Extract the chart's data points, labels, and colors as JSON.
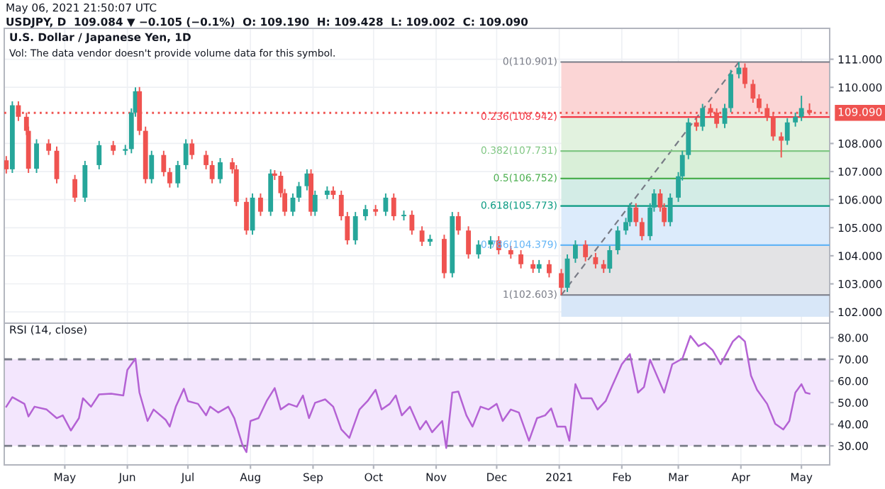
{
  "chart_data": [
    {
      "type": "candlestick",
      "title": "U.S. Dollar / Japanese Yen, 1D",
      "subtitle": "Vol: The data vendor doesn't provide volume data for this symbol.",
      "annotations": [
        "May 06, 2021 21:50:07 UTC",
        "USDJPY, D  109.084 ▼ −0.105 (−0.1%)  O: 109.190  H: 109.428  L: 109.002  C: 109.090"
      ],
      "x": [
        "2020-04-02",
        "2020-04-05",
        "2020-04-08",
        "2020-04-12",
        "2020-04-13",
        "2020-04-17",
        "2020-04-23",
        "2020-04-27",
        "2020-05-06",
        "2020-05-11",
        "2020-05-18",
        "2020-05-25",
        "2020-05-31",
        "2020-06-03",
        "2020-06-05",
        "2020-06-07",
        "2020-06-10",
        "2020-06-13",
        "2020-06-19",
        "2020-06-22",
        "2020-06-26",
        "2020-06-30",
        "2020-07-03",
        "2020-07-10",
        "2020-07-13",
        "2020-07-17",
        "2020-07-23",
        "2020-07-25",
        "2020-07-30",
        "2020-08-02",
        "2020-08-06",
        "2020-08-11",
        "2020-08-13",
        "2020-08-16",
        "2020-08-18",
        "2020-08-22",
        "2020-08-25",
        "2020-08-29",
        "2020-08-31",
        "2020-09-02",
        "2020-09-08",
        "2020-09-11",
        "2020-09-15",
        "2020-09-18",
        "2020-09-22",
        "2020-09-27",
        "2020-10-02",
        "2020-10-07",
        "2020-10-11",
        "2020-10-16",
        "2020-10-20",
        "2020-10-25",
        "2020-10-29",
        "2020-11-05",
        "2020-11-09",
        "2020-11-12",
        "2020-11-17",
        "2020-11-22",
        "2020-11-28",
        "2020-12-02",
        "2020-12-08",
        "2020-12-13",
        "2020-12-19",
        "2020-12-22",
        "2020-12-27",
        "2021-01-02",
        "2021-01-05",
        "2021-01-09",
        "2021-01-14",
        "2021-01-19",
        "2021-01-23",
        "2021-01-26",
        "2021-01-30",
        "2021-02-03",
        "2021-02-05",
        "2021-02-08",
        "2021-02-11",
        "2021-02-15",
        "2021-02-17",
        "2021-02-20",
        "2021-02-22",
        "2021-02-25",
        "2021-03-01",
        "2021-03-03",
        "2021-03-06",
        "2021-03-10",
        "2021-03-13",
        "2021-03-17",
        "2021-03-20",
        "2021-03-24",
        "2021-03-27",
        "2021-03-31",
        "2021-04-03",
        "2021-04-07",
        "2021-04-10",
        "2021-04-14",
        "2021-04-17",
        "2021-04-21",
        "2021-04-24",
        "2021-04-28",
        "2021-05-01",
        "2021-05-05"
      ],
      "ohlc": [
        [
          107.4,
          107.55,
          106.93,
          107.08
        ],
        [
          107.08,
          109.5,
          106.95,
          109.36
        ],
        [
          109.36,
          109.5,
          108.8,
          108.95
        ],
        [
          108.95,
          109.1,
          108.3,
          108.45
        ],
        [
          108.45,
          108.6,
          106.95,
          107.1
        ],
        [
          107.1,
          108.15,
          106.95,
          108.0
        ],
        [
          108.0,
          108.15,
          107.59,
          107.74
        ],
        [
          107.74,
          107.89,
          106.58,
          106.73
        ],
        [
          106.73,
          106.88,
          105.92,
          106.07
        ],
        [
          106.07,
          107.38,
          105.92,
          107.23
        ],
        [
          107.23,
          108.09,
          107.08,
          107.94
        ],
        [
          107.94,
          108.09,
          107.59,
          107.74
        ],
        [
          107.74,
          107.95,
          107.59,
          107.8
        ],
        [
          107.8,
          109.25,
          107.65,
          109.1
        ],
        [
          109.1,
          110.0,
          108.95,
          109.86
        ],
        [
          109.86,
          110.01,
          108.3,
          108.45
        ],
        [
          108.45,
          108.6,
          106.58,
          106.73
        ],
        [
          106.73,
          107.74,
          106.58,
          107.59
        ],
        [
          107.59,
          107.74,
          106.83,
          106.98
        ],
        [
          106.98,
          107.13,
          106.43,
          106.58
        ],
        [
          106.58,
          107.38,
          106.43,
          107.23
        ],
        [
          107.23,
          108.15,
          107.08,
          108.0
        ],
        [
          108.0,
          108.15,
          107.44,
          107.59
        ],
        [
          107.59,
          107.74,
          107.08,
          107.23
        ],
        [
          107.23,
          107.38,
          106.58,
          106.73
        ],
        [
          106.73,
          107.48,
          106.58,
          107.33
        ],
        [
          107.33,
          107.48,
          106.93,
          107.08
        ],
        [
          107.08,
          107.23,
          105.77,
          105.92
        ],
        [
          105.92,
          106.07,
          104.75,
          104.9
        ],
        [
          104.9,
          106.22,
          104.75,
          106.07
        ],
        [
          106.07,
          106.22,
          105.42,
          105.57
        ],
        [
          105.57,
          107.08,
          105.42,
          106.93
        ],
        [
          106.93,
          107.05,
          106.7,
          106.85
        ],
        [
          106.85,
          107.0,
          106.08,
          106.23
        ],
        [
          106.23,
          106.38,
          105.42,
          105.57
        ],
        [
          105.57,
          106.22,
          105.42,
          106.07
        ],
        [
          106.07,
          106.63,
          105.92,
          106.48
        ],
        [
          106.48,
          107.08,
          106.33,
          106.93
        ],
        [
          106.93,
          107.08,
          105.42,
          105.57
        ],
        [
          105.57,
          106.32,
          105.42,
          106.17
        ],
        [
          106.17,
          106.47,
          106.02,
          106.32
        ],
        [
          106.32,
          106.47,
          106.02,
          106.17
        ],
        [
          106.17,
          106.32,
          105.26,
          105.41
        ],
        [
          105.41,
          105.56,
          104.4,
          104.55
        ],
        [
          104.55,
          105.56,
          104.4,
          105.41
        ],
        [
          105.41,
          105.81,
          105.26,
          105.66
        ],
        [
          105.66,
          105.81,
          105.42,
          105.57
        ],
        [
          105.57,
          106.22,
          105.42,
          106.07
        ],
        [
          106.07,
          106.22,
          105.26,
          105.41
        ],
        [
          105.41,
          105.61,
          105.26,
          105.46
        ],
        [
          105.46,
          105.61,
          104.75,
          104.9
        ],
        [
          104.9,
          105.05,
          104.35,
          104.5
        ],
        [
          104.5,
          104.75,
          104.35,
          104.6
        ],
        [
          104.6,
          104.75,
          103.2,
          103.38
        ],
        [
          103.38,
          105.56,
          103.23,
          105.41
        ],
        [
          105.41,
          105.56,
          104.75,
          104.9
        ],
        [
          104.9,
          105.05,
          103.9,
          104.05
        ],
        [
          104.05,
          104.55,
          103.9,
          104.4
        ],
        [
          104.4,
          104.7,
          104.25,
          104.55
        ],
        [
          104.55,
          104.7,
          104.05,
          104.2
        ],
        [
          104.2,
          104.35,
          103.9,
          104.05
        ],
        [
          104.05,
          104.2,
          103.55,
          103.7
        ],
        [
          103.7,
          103.85,
          103.39,
          103.54
        ],
        [
          103.54,
          103.85,
          103.39,
          103.7
        ],
        [
          103.7,
          103.85,
          103.23,
          103.38
        ],
        [
          103.38,
          103.53,
          102.603,
          102.86
        ],
        [
          102.86,
          104.05,
          102.71,
          103.9
        ],
        [
          103.9,
          104.55,
          103.75,
          104.4
        ],
        [
          104.4,
          104.55,
          103.8,
          103.95
        ],
        [
          103.95,
          104.1,
          103.55,
          103.7
        ],
        [
          103.7,
          103.85,
          103.39,
          103.54
        ],
        [
          103.54,
          104.35,
          103.39,
          104.2
        ],
        [
          104.2,
          105.05,
          104.05,
          104.9
        ],
        [
          104.9,
          105.35,
          104.75,
          105.2
        ],
        [
          105.2,
          105.87,
          105.05,
          105.72
        ],
        [
          105.72,
          105.87,
          105.05,
          105.2
        ],
        [
          105.2,
          105.35,
          104.55,
          104.7
        ],
        [
          104.7,
          105.87,
          104.55,
          105.72
        ],
        [
          105.72,
          106.37,
          105.57,
          106.22
        ],
        [
          106.22,
          106.37,
          105.57,
          105.72
        ],
        [
          105.72,
          105.87,
          105.05,
          105.2
        ],
        [
          105.2,
          106.22,
          105.05,
          106.07
        ],
        [
          106.07,
          106.98,
          105.92,
          106.83
        ],
        [
          106.83,
          107.74,
          106.68,
          107.59
        ],
        [
          107.59,
          108.9,
          107.44,
          108.75
        ],
        [
          108.75,
          108.9,
          108.45,
          108.6
        ],
        [
          108.6,
          109.41,
          108.45,
          109.26
        ],
        [
          109.26,
          109.41,
          108.95,
          109.1
        ],
        [
          109.1,
          109.25,
          108.55,
          108.7
        ],
        [
          108.7,
          109.41,
          108.55,
          109.26
        ],
        [
          109.26,
          110.62,
          109.11,
          110.47
        ],
        [
          110.47,
          110.901,
          110.32,
          110.7
        ],
        [
          110.7,
          110.85,
          109.97,
          110.12
        ],
        [
          110.12,
          110.27,
          109.45,
          109.6
        ],
        [
          109.6,
          109.75,
          109.11,
          109.26
        ],
        [
          109.26,
          109.41,
          108.8,
          108.95
        ],
        [
          108.95,
          109.1,
          108.1,
          108.25
        ],
        [
          108.25,
          108.4,
          107.5,
          108.1
        ],
        [
          108.1,
          108.9,
          107.95,
          108.75
        ],
        [
          108.75,
          109.1,
          108.6,
          108.95
        ],
        [
          108.95,
          109.7,
          108.8,
          109.26
        ],
        [
          109.19,
          109.428,
          109.002,
          109.09
        ]
      ],
      "colors": [
        "#ef5350",
        "#26a69a",
        "#ef5350",
        "#ef5350",
        "#ef5350",
        "#26a69a",
        "#ef5350",
        "#ef5350",
        "#ef5350",
        "#26a69a",
        "#26a69a",
        "#ef5350",
        "#26a69a",
        "#26a69a",
        "#26a69a",
        "#ef5350",
        "#ef5350",
        "#26a69a",
        "#ef5350",
        "#ef5350",
        "#26a69a",
        "#26a69a",
        "#ef5350",
        "#ef5350",
        "#ef5350",
        "#26a69a",
        "#ef5350",
        "#ef5350",
        "#ef5350",
        "#26a69a",
        "#ef5350",
        "#26a69a",
        "#ef5350",
        "#ef5350",
        "#ef5350",
        "#26a69a",
        "#26a69a",
        "#26a69a",
        "#ef5350",
        "#26a69a",
        "#26a69a",
        "#ef5350",
        "#ef5350",
        "#ef5350",
        "#26a69a",
        "#26a69a",
        "#ef5350",
        "#26a69a",
        "#ef5350",
        "#26a69a",
        "#ef5350",
        "#ef5350",
        "#26a69a",
        "#ef5350",
        "#26a69a",
        "#ef5350",
        "#ef5350",
        "#26a69a",
        "#26a69a",
        "#ef5350",
        "#ef5350",
        "#ef5350",
        "#ef5350",
        "#26a69a",
        "#ef5350",
        "#ef5350",
        "#26a69a",
        "#26a69a",
        "#ef5350",
        "#ef5350",
        "#ef5350",
        "#26a69a",
        "#26a69a",
        "#26a69a",
        "#26a69a",
        "#ef5350",
        "#ef5350",
        "#26a69a",
        "#26a69a",
        "#ef5350",
        "#ef5350",
        "#26a69a",
        "#26a69a",
        "#26a69a",
        "#26a69a",
        "#ef5350",
        "#26a69a",
        "#ef5350",
        "#ef5350",
        "#26a69a",
        "#26a69a",
        "#26a69a",
        "#ef5350",
        "#ef5350",
        "#ef5350",
        "#ef5350",
        "#ef5350",
        "#ef5350",
        "#26a69a",
        "#26a69a",
        "#26a69a",
        "#ef5350"
      ],
      "series": [
        {
          "type": "line",
          "x": [
            "2021-01-02",
            "2021-03-31"
          ],
          "values": [
            102.6,
            110.9
          ],
          "color": "#787b86",
          "line_style": "dashed"
        }
      ],
      "xlim": [
        "2020-04-01",
        "2021-05-15"
      ],
      "xticks": [
        {
          "value": "2020-05-01",
          "label": null
        },
        {
          "value": "2020-06-01",
          "label": null
        },
        {
          "value": "2020-07-01",
          "label": null
        },
        {
          "value": "2020-08-01",
          "label": null
        },
        {
          "value": "2020-09-01",
          "label": null
        },
        {
          "value": "2020-10-01",
          "label": null
        },
        {
          "value": "2020-11-01",
          "label": null
        },
        {
          "value": "2020-12-01",
          "label": null
        },
        {
          "value": "2021-01-01",
          "label": null
        },
        {
          "value": "2021-02-01",
          "label": null
        },
        {
          "value": "2021-03-01",
          "label": null
        },
        {
          "value": "2021-04-01",
          "label": null
        },
        {
          "value": "2021-05-01",
          "label": null
        }
      ],
      "ylim": [
        101.6,
        112.1
      ],
      "yticks": [
        {
          "value": 102,
          "label": "102.000"
        },
        {
          "value": 103,
          "label": "103.000"
        },
        {
          "value": 104,
          "label": "104.000"
        },
        {
          "value": 105,
          "label": "105.000"
        },
        {
          "value": 106,
          "label": "106.000"
        },
        {
          "value": 107,
          "label": "107.000"
        },
        {
          "value": 108,
          "label": "108.000"
        },
        {
          "value": 110,
          "label": "110.000"
        },
        {
          "value": 111,
          "label": "111.000"
        }
      ],
      "tick_labels": "y",
      "grid": true,
      "ref_lines": [
        {
          "axis": "y",
          "value": 110.901,
          "label": "0(110.901)",
          "color": "#787b86",
          "line_style": "solid"
        },
        {
          "axis": "y",
          "value": 108.942,
          "label": "0.236(108.942)",
          "color": "#f23645",
          "line_style": "solid"
        },
        {
          "axis": "y",
          "value": 107.731,
          "label": "0.382(107.731)",
          "color": "#81c784",
          "line_style": "solid"
        },
        {
          "axis": "y",
          "value": 106.752,
          "label": "0.5(106.752)",
          "color": "#4caf50",
          "line_style": "solid"
        },
        {
          "axis": "y",
          "value": 105.773,
          "label": "0.618(105.773)",
          "color": "#089981",
          "line_style": "solid"
        },
        {
          "axis": "y",
          "value": 104.379,
          "label": "0.786(104.379)",
          "color": "#64b5f6",
          "line_style": "solid"
        },
        {
          "axis": "y",
          "value": 102.603,
          "label": "1(102.603)",
          "color": "#787b86",
          "line_style": "solid"
        },
        {
          "axis": "y",
          "value": 109.09,
          "label": "109.090",
          "color": "#ef5350",
          "line_style": "dotted"
        }
      ],
      "bands": [
        {
          "axis": "y",
          "from": 108.942,
          "to": 110.901,
          "color": "#fbd5d5"
        },
        {
          "axis": "y",
          "from": 107.731,
          "to": 108.942,
          "color": "#e2f2df"
        },
        {
          "axis": "y",
          "from": 106.752,
          "to": 107.731,
          "color": "#d9efd8"
        },
        {
          "axis": "y",
          "from": 105.773,
          "to": 106.752,
          "color": "#d3ece6"
        },
        {
          "axis": "y",
          "from": 104.379,
          "to": 105.773,
          "color": "#dcebfb"
        },
        {
          "axis": "y",
          "from": 102.603,
          "to": 104.379,
          "color": "#e3e3e5"
        },
        {
          "axis": "y",
          "from": 101.83,
          "to": 102.603,
          "color": "#d8e7f8"
        }
      ]
    },
    {
      "type": "line",
      "title": "RSI (14, close)",
      "color": "#b462d4",
      "x": [
        "2020-04-02",
        "2020-04-05",
        "2020-04-11",
        "2020-04-13",
        "2020-04-16",
        "2020-04-22",
        "2020-04-27",
        "2020-04-30",
        "2020-05-04",
        "2020-05-08",
        "2020-05-10",
        "2020-05-14",
        "2020-05-18",
        "2020-05-24",
        "2020-05-30",
        "2020-06-01",
        "2020-06-05",
        "2020-06-07",
        "2020-06-11",
        "2020-06-14",
        "2020-06-20",
        "2020-06-22",
        "2020-06-25",
        "2020-06-29",
        "2020-07-01",
        "2020-07-06",
        "2020-07-10",
        "2020-07-12",
        "2020-07-16",
        "2020-07-21",
        "2020-07-24",
        "2020-07-28",
        "2020-07-30",
        "2020-08-01",
        "2020-08-05",
        "2020-08-09",
        "2020-08-13",
        "2020-08-16",
        "2020-08-20",
        "2020-08-24",
        "2020-08-27",
        "2020-08-30",
        "2020-09-02",
        "2020-09-07",
        "2020-09-11",
        "2020-09-15",
        "2020-09-19",
        "2020-09-24",
        "2020-09-28",
        "2020-10-02",
        "2020-10-05",
        "2020-10-09",
        "2020-10-12",
        "2020-10-15",
        "2020-10-19",
        "2020-10-24",
        "2020-10-27",
        "2020-10-30",
        "2020-11-04",
        "2020-11-06",
        "2020-11-09",
        "2020-11-12",
        "2020-11-16",
        "2020-11-19",
        "2020-11-23",
        "2020-11-27",
        "2020-12-01",
        "2020-12-04",
        "2020-12-08",
        "2020-12-12",
        "2020-12-17",
        "2020-12-21",
        "2020-12-25",
        "2020-12-28",
        "2020-12-31",
        "2021-01-04",
        "2021-01-06",
        "2021-01-09",
        "2021-01-12",
        "2021-01-17",
        "2021-01-20",
        "2021-01-24",
        "2021-01-27",
        "2021-02-01",
        "2021-02-05",
        "2021-02-09",
        "2021-02-12",
        "2021-02-15",
        "2021-02-22",
        "2021-02-26",
        "2021-03-03",
        "2021-03-07",
        "2021-03-11",
        "2021-03-14",
        "2021-03-18",
        "2021-03-22",
        "2021-03-28",
        "2021-03-31",
        "2021-04-03",
        "2021-04-06",
        "2021-04-09",
        "2021-04-14",
        "2021-04-18",
        "2021-04-22",
        "2021-04-25",
        "2021-04-28",
        "2021-05-01",
        "2021-05-03",
        "2021-05-05"
      ],
      "values": [
        48.1,
        52.5,
        49.4,
        43.6,
        48.1,
        46.8,
        42.8,
        44.1,
        37.1,
        42.8,
        52.0,
        48.1,
        53.8,
        54.1,
        53.3,
        65.1,
        70.3,
        54.6,
        41.5,
        46.8,
        42.0,
        38.9,
        48.1,
        56.4,
        50.7,
        49.4,
        44.1,
        48.1,
        45.4,
        48.1,
        42.8,
        30.5,
        27.1,
        41.5,
        42.8,
        50.7,
        56.7,
        46.8,
        49.4,
        48.1,
        53.3,
        42.8,
        49.9,
        51.5,
        48.1,
        37.6,
        33.7,
        46.8,
        50.7,
        55.9,
        46.8,
        49.4,
        53.3,
        44.1,
        48.1,
        37.6,
        41.5,
        36.3,
        41.5,
        29.0,
        54.6,
        55.1,
        44.1,
        38.9,
        48.1,
        46.8,
        49.4,
        41.5,
        46.8,
        45.4,
        32.4,
        42.8,
        44.1,
        47.3,
        38.9,
        38.9,
        32.4,
        58.5,
        52.0,
        52.0,
        46.8,
        50.7,
        57.2,
        67.7,
        72.4,
        54.6,
        57.2,
        69.8,
        54.6,
        67.7,
        70.3,
        80.8,
        76.1,
        77.6,
        74.2,
        67.7,
        78.2,
        80.8,
        78.2,
        62.5,
        55.9,
        49.4,
        40.2,
        37.6,
        41.5,
        54.6,
        58.5,
        54.6,
        54.1
      ],
      "xlim": [
        "2020-04-01",
        "2021-05-15"
      ],
      "xticks": [
        {
          "value": "2020-05-01",
          "label": "May"
        },
        {
          "value": "2020-06-01",
          "label": "Jun"
        },
        {
          "value": "2020-07-01",
          "label": "Jul"
        },
        {
          "value": "2020-08-01",
          "label": "Aug"
        },
        {
          "value": "2020-09-01",
          "label": "Sep"
        },
        {
          "value": "2020-10-01",
          "label": "Oct"
        },
        {
          "value": "2020-11-01",
          "label": "Nov"
        },
        {
          "value": "2020-12-01",
          "label": "Dec"
        },
        {
          "value": "2021-01-01",
          "label": "2021"
        },
        {
          "value": "2021-02-01",
          "label": "Feb"
        },
        {
          "value": "2021-03-01",
          "label": "Mar"
        },
        {
          "value": "2021-04-01",
          "label": "Apr"
        },
        {
          "value": "2021-05-01",
          "label": "May"
        }
      ],
      "ylim": [
        21.2,
        86.7
      ],
      "yticks": [
        {
          "value": 30,
          "label": "30.00"
        },
        {
          "value": 40,
          "label": "40.00"
        },
        {
          "value": 50,
          "label": "50.00"
        },
        {
          "value": 60,
          "label": "60.00"
        },
        {
          "value": 70,
          "label": "70.00"
        },
        {
          "value": 80,
          "label": "80.00"
        }
      ],
      "grid": "x",
      "ref_lines": [
        {
          "axis": "y",
          "value": 70,
          "color": "#787b86",
          "line_style": "dashed"
        },
        {
          "axis": "y",
          "value": 30,
          "color": "#787b86",
          "line_style": "dashed"
        }
      ],
      "bands": [
        {
          "axis": "y",
          "from": 30,
          "to": 70,
          "color": "#f3e6fd"
        }
      ]
    }
  ]
}
